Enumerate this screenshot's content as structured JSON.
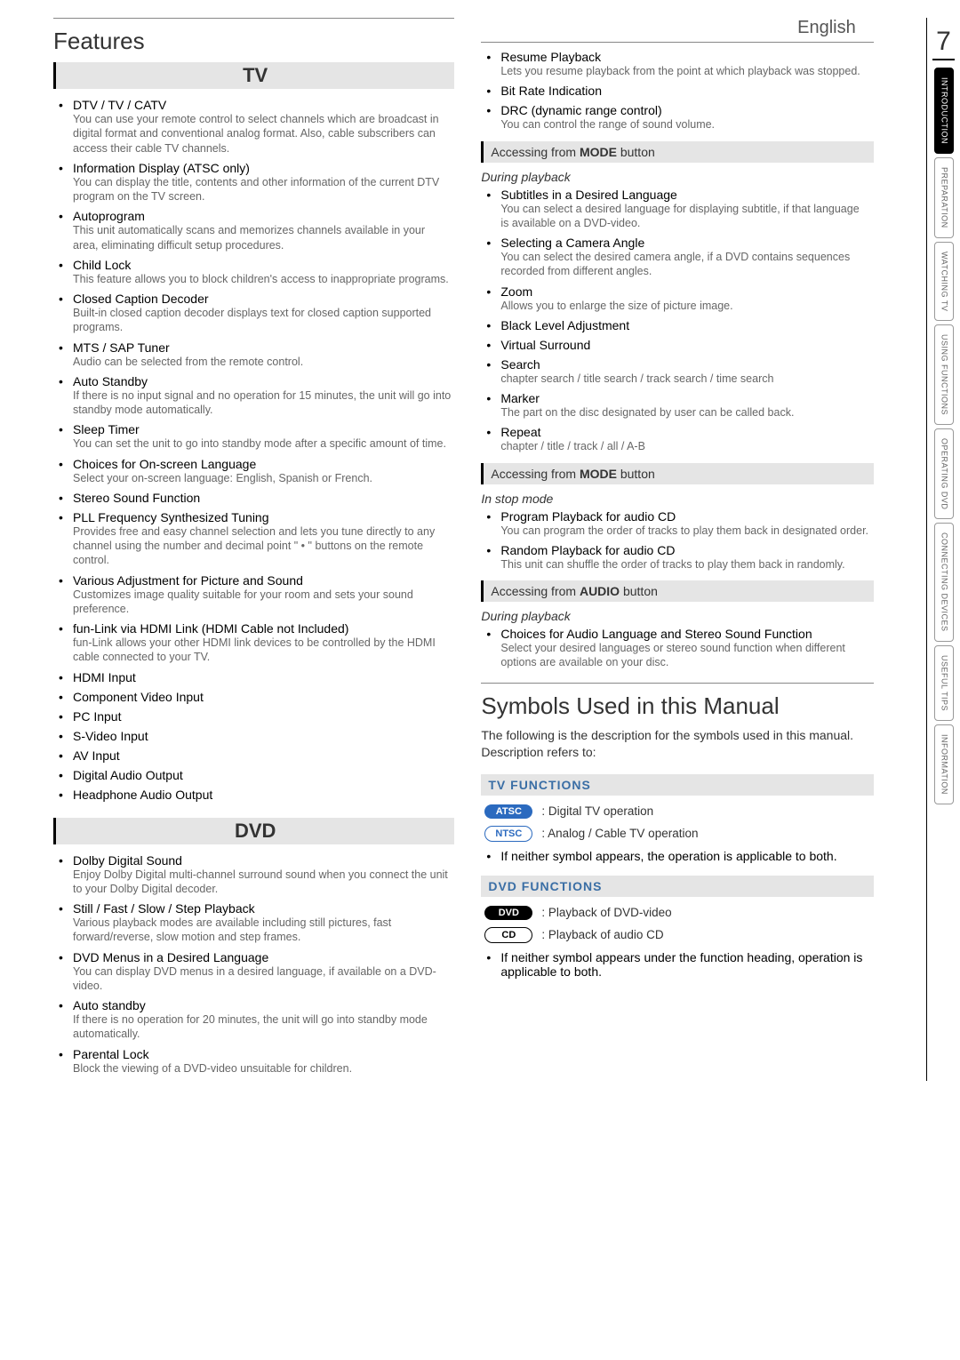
{
  "page_number": "7",
  "language": "English",
  "sidebar_tabs": [
    {
      "label": "INTRODUCTION",
      "active": true
    },
    {
      "label": "PREPARATION",
      "active": false
    },
    {
      "label": "WATCHING TV",
      "active": false
    },
    {
      "label": "USING FUNCTIONS",
      "active": false
    },
    {
      "label": "OPERATING DVD",
      "active": false
    },
    {
      "label": "CONNECTING DEVICES",
      "active": false
    },
    {
      "label": "USEFUL TIPS",
      "active": false
    },
    {
      "label": "INFORMATION",
      "active": false
    }
  ],
  "left": {
    "heading": "Features",
    "tv": {
      "header": "TV",
      "items": [
        {
          "title": "DTV / TV / CATV",
          "desc": "You can use your remote control to select channels which are broadcast in digital format and conventional analog format. Also, cable subscribers can access their cable TV channels."
        },
        {
          "title": "Information Display",
          "note": " (ATSC only)",
          "desc": "You can display the title, contents and other information of the current DTV program on the TV screen."
        },
        {
          "title": "Autoprogram",
          "desc": "This unit automatically scans and memorizes channels available in your area, eliminating difficult setup procedures."
        },
        {
          "title": "Child Lock",
          "desc": "This feature allows you to block children's access to inappropriate programs."
        },
        {
          "title": "Closed Caption Decoder",
          "desc": "Built-in closed caption decoder displays text for closed caption supported programs."
        },
        {
          "title": "MTS / SAP Tuner",
          "desc": "Audio can be selected from the remote control."
        },
        {
          "title": "Auto Standby",
          "desc": "If there is no input signal and no operation for 15 minutes, the unit will go into standby mode automatically."
        },
        {
          "title": "Sleep Timer",
          "desc": "You can set the unit to go into standby mode after a specific amount of time."
        },
        {
          "title": "Choices for On-screen Language",
          "desc": "Select your on-screen language: English, Spanish or French."
        },
        {
          "title": "Stereo Sound Function"
        },
        {
          "title": "PLL Frequency Synthesized Tuning",
          "desc": "Provides free and easy channel selection and lets you tune directly to any channel using the number and decimal point \" • \" buttons on the remote control."
        },
        {
          "title": "Various Adjustment for Picture and Sound",
          "desc": "Customizes image quality suitable for your room and sets your sound preference."
        },
        {
          "title": "fun-Link via HDMI Link",
          "note": " (HDMI Cable not Included)",
          "desc": "fun-Link allows your other HDMI link devices to be controlled by the HDMI cable connected to your TV."
        },
        {
          "title": "HDMI Input"
        },
        {
          "title": "Component Video Input"
        },
        {
          "title": "PC Input"
        },
        {
          "title": "S-Video Input"
        },
        {
          "title": "AV Input"
        },
        {
          "title": "Digital Audio Output"
        },
        {
          "title": "Headphone Audio Output"
        }
      ]
    },
    "dvd": {
      "header": "DVD",
      "items": [
        {
          "title": "Dolby Digital Sound",
          "desc": "Enjoy Dolby Digital multi-channel surround sound when you connect the unit to your Dolby Digital decoder."
        },
        {
          "title": "Still / Fast / Slow / Step Playback",
          "desc": "Various playback modes are available including still pictures, fast forward/reverse, slow motion and step frames."
        },
        {
          "title": "DVD Menus in a Desired Language",
          "desc": "You can display DVD menus in a desired language, if available on a DVD-video."
        },
        {
          "title": "Auto standby",
          "desc": "If there is no operation for 20 minutes, the unit will go into standby mode automatically."
        },
        {
          "title": "Parental Lock",
          "desc": "Block the viewing of a DVD-video unsuitable for children."
        }
      ]
    }
  },
  "right": {
    "cont_items": [
      {
        "title": "Resume Playback",
        "desc": "Lets you resume playback from the point at which playback was stopped."
      },
      {
        "title": "Bit Rate Indication"
      },
      {
        "title": "DRC (dynamic range control)",
        "desc": "You can control the range of sound volume."
      }
    ],
    "mode_header": "Accessing from MODE button",
    "mode_header_prefix": "Accessing from ",
    "mode_header_bold": "MODE",
    "mode_header_suffix": " button",
    "playback_ctx": "During playback",
    "playback_items": [
      {
        "title": "Subtitles in a Desired Language",
        "desc": "You can select a desired language for displaying subtitle, if that language is available on a DVD-video."
      },
      {
        "title": "Selecting a Camera Angle",
        "desc": "You can select the desired camera angle, if a DVD contains sequences recorded from different angles."
      },
      {
        "title": "Zoom",
        "desc": "Allows you to enlarge the size of picture image."
      },
      {
        "title": "Black Level Adjustment"
      },
      {
        "title": "Virtual Surround"
      },
      {
        "title": "Search",
        "desc": "chapter search / title search / track search / time search"
      },
      {
        "title": "Marker",
        "desc": "The part on the disc designated by user can be called back."
      },
      {
        "title": "Repeat",
        "desc": "chapter / title / track / all / A-B"
      }
    ],
    "stop_ctx": "In stop mode",
    "stop_items": [
      {
        "title": "Program Playback for audio CD",
        "desc": "You can program the order of tracks to play them back in designated order."
      },
      {
        "title": "Random Playback for audio CD",
        "desc": "This unit can shuffle the order of tracks to play them back in randomly."
      }
    ],
    "audio_header_prefix": "Accessing from ",
    "audio_header_bold": "AUDIO",
    "audio_header_suffix": " button",
    "audio_ctx": "During playback",
    "audio_items": [
      {
        "title": "Choices for Audio Language and Stereo Sound Function",
        "desc": "Select your desired languages or stereo sound function when different options are available on your disc."
      }
    ],
    "symbols_heading": "Symbols Used in this Manual",
    "symbols_intro": "The following is the description for the symbols used in this manual. Description refers to:",
    "tv_func_header": "TV FUNCTIONS",
    "tv_syms": [
      {
        "pill": "ATSC",
        "cls": "atsc",
        "desc": ": Digital TV operation"
      },
      {
        "pill": "NTSC",
        "cls": "ntsc",
        "desc": ": Analog / Cable TV operation"
      }
    ],
    "tv_neither": "If neither symbol appears, the operation is applicable to both.",
    "dvd_func_header": "DVD FUNCTIONS",
    "dvd_syms": [
      {
        "pill": "DVD",
        "cls": "dvd",
        "desc": ": Playback of DVD-video"
      },
      {
        "pill": "CD",
        "cls": "cd",
        "desc": ": Playback of audio CD"
      }
    ],
    "dvd_neither": "If neither symbol appears under the function heading, operation is applicable to both."
  }
}
